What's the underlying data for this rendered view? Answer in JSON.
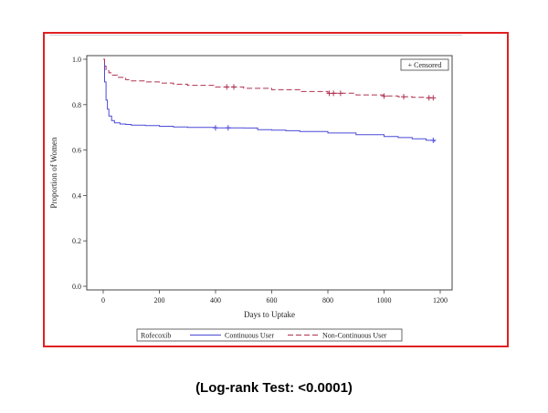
{
  "footnote": "(Log-rank Test: <0.0001)",
  "chart_data": {
    "type": "line",
    "title": "",
    "xlabel": "Days to Uptake",
    "ylabel": "Proportion of Women",
    "xlim": [
      0,
      1200
    ],
    "ylim": [
      0,
      1.0
    ],
    "xticks": [
      0,
      200,
      400,
      600,
      800,
      1000,
      1200
    ],
    "yticks": [
      0.0,
      0.2,
      0.4,
      0.6,
      0.8,
      1.0
    ],
    "xtick_labels": [
      "0",
      "200",
      "400",
      "600",
      "800",
      "1000",
      "1200"
    ],
    "ytick_labels": [
      "0.0",
      "0.2",
      "0.4",
      "0.6",
      "0.8",
      "1.0"
    ],
    "grid": false,
    "censored_legend": "+ Censored",
    "legend_title": "Rofecoxib",
    "legend_position": "bottom",
    "series": [
      {
        "name": "Continuous User",
        "color": "#4a4ad8",
        "style": "solid",
        "x": [
          0,
          5,
          10,
          15,
          20,
          30,
          40,
          60,
          80,
          100,
          150,
          200,
          250,
          300,
          400,
          500,
          550,
          600,
          650,
          700,
          800,
          900,
          1000,
          1050,
          1100,
          1150,
          1180
        ],
        "y": [
          1.0,
          0.9,
          0.82,
          0.78,
          0.75,
          0.73,
          0.72,
          0.715,
          0.713,
          0.71,
          0.708,
          0.705,
          0.702,
          0.7,
          0.698,
          0.697,
          0.69,
          0.688,
          0.685,
          0.682,
          0.675,
          0.668,
          0.66,
          0.655,
          0.65,
          0.643,
          0.636
        ],
        "censored_x": [
          400,
          445,
          1175
        ]
      },
      {
        "name": "Non-Continuous User",
        "color": "#b03050",
        "style": "dashed",
        "x": [
          0,
          5,
          10,
          20,
          30,
          50,
          80,
          100,
          150,
          200,
          250,
          300,
          400,
          500,
          600,
          700,
          800,
          900,
          1000,
          1050,
          1100,
          1150,
          1180
        ],
        "y": [
          1.0,
          0.97,
          0.95,
          0.94,
          0.93,
          0.92,
          0.91,
          0.905,
          0.9,
          0.895,
          0.89,
          0.885,
          0.878,
          0.872,
          0.866,
          0.858,
          0.85,
          0.843,
          0.838,
          0.835,
          0.832,
          0.83,
          0.83
        ],
        "censored_x": [
          440,
          465,
          805,
          820,
          845,
          1000,
          1070,
          1160,
          1175
        ]
      }
    ]
  }
}
